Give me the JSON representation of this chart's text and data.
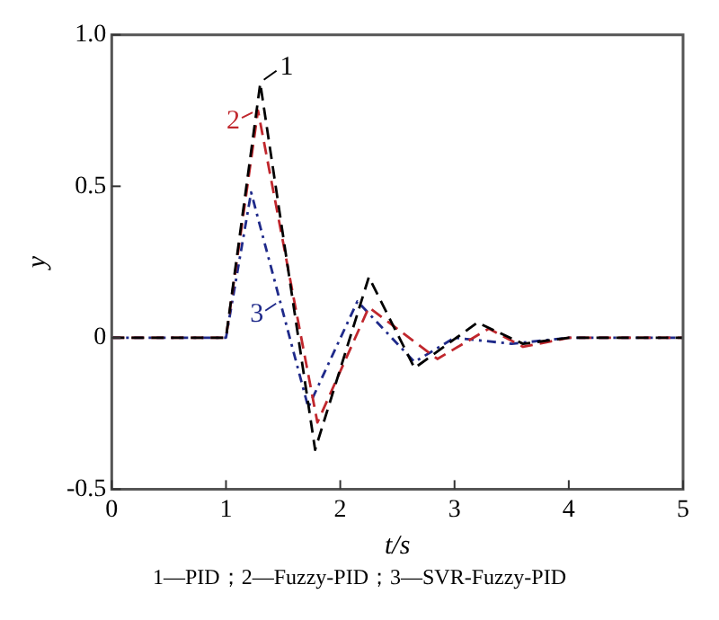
{
  "chart_data": {
    "type": "line",
    "xlabel": "t/s",
    "ylabel": "y",
    "xlim": [
      0,
      5
    ],
    "ylim": [
      -0.5,
      1
    ],
    "xticks": [
      0,
      1,
      2,
      3,
      4,
      5
    ],
    "yticks": [
      -0.5,
      0,
      0.5,
      {
        "value": 1,
        "label": "1.0"
      }
    ],
    "grid": false,
    "legend": "top left",
    "marker": "none",
    "series": [
      {
        "name": "1",
        "color": "#000000",
        "line_style": "dashed",
        "x": [
          0,
          1,
          1.3,
          1.78,
          2.25,
          2.65,
          3.2,
          3.6,
          4,
          5
        ],
        "values": [
          0,
          0,
          0.84,
          -0.37,
          0.2,
          -0.1,
          0.05,
          -0.02,
          0,
          0
        ]
      },
      {
        "name": "2",
        "color": "#c0272d",
        "line_style": "dashed",
        "x": [
          0,
          1,
          1.28,
          1.8,
          2.25,
          2.85,
          3.3,
          3.6,
          4,
          5
        ],
        "values": [
          0,
          0,
          0.75,
          -0.28,
          0.1,
          -0.07,
          0.03,
          -0.03,
          0,
          0
        ]
      },
      {
        "name": "3",
        "color": "#1f2a8a",
        "line_style": "dotted",
        "x": [
          0,
          1,
          1.22,
          1.72,
          2.15,
          2.65,
          3,
          3.5,
          4,
          5
        ],
        "values": [
          0,
          0,
          0.48,
          -0.23,
          0.12,
          -0.08,
          0,
          -0.02,
          0,
          0
        ]
      }
    ],
    "annotations": [
      "1—PID；2—Fuzzy-PID；3—SVR-Fuzzy-PID"
    ]
  }
}
